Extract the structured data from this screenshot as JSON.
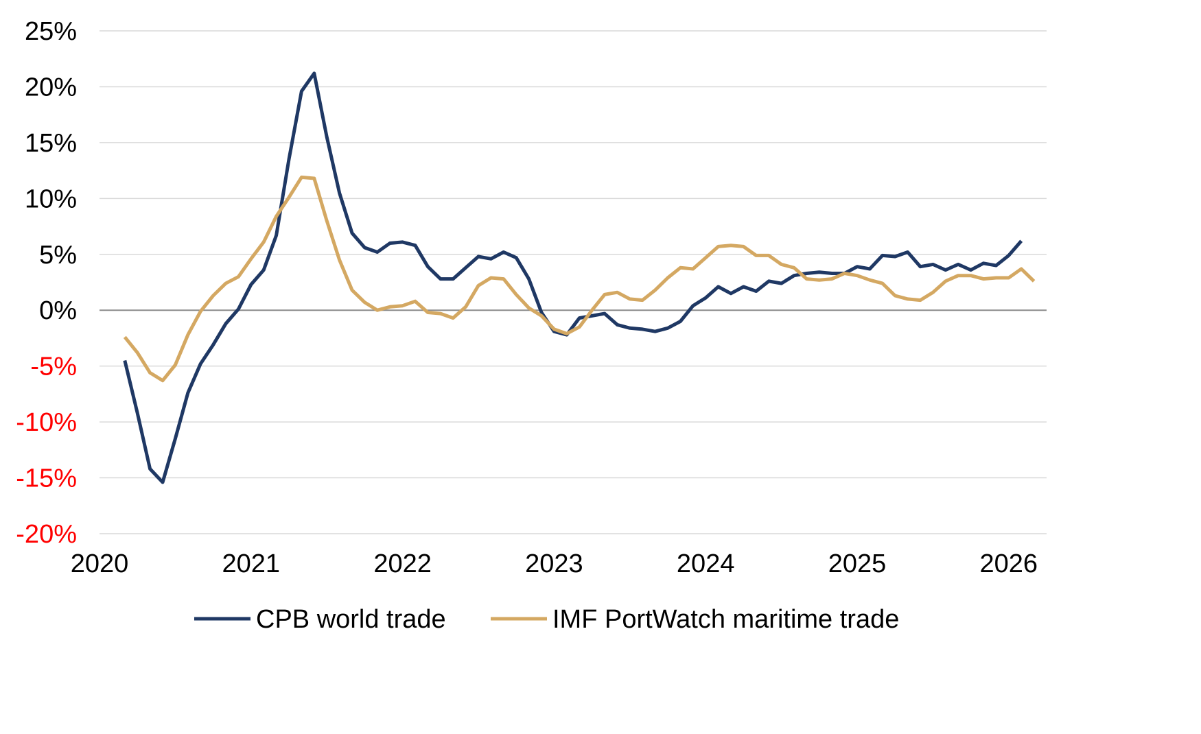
{
  "chart_data": {
    "type": "line",
    "title": "",
    "xlabel": "",
    "ylabel": "",
    "ylim": [
      -20,
      25
    ],
    "xlim": [
      "2020-01",
      "2026-04"
    ],
    "y_ticks": [
      25,
      20,
      15,
      10,
      5,
      0,
      -5,
      -10,
      -15,
      -20
    ],
    "y_tick_labels": [
      "25%",
      "20%",
      "15%",
      "10%",
      "5%",
      "0%",
      "-5%",
      "-10%",
      "-15%",
      "-20%"
    ],
    "negative_tick_color": "#ff0000",
    "positive_tick_color": "#000000",
    "x_ticks": [
      "2020-01",
      "2021-01",
      "2022-01",
      "2023-01",
      "2024-01",
      "2025-01",
      "2026-01"
    ],
    "x_tick_labels": [
      "2020",
      "2021",
      "2022",
      "2023",
      "2024",
      "2025",
      "2026"
    ],
    "grid": "horizontal",
    "legend_position": "bottom",
    "series": [
      {
        "name": "CPB world trade",
        "color": "#1f3864",
        "x": [
          "2020-03",
          "2020-04",
          "2020-05",
          "2020-06",
          "2020-07",
          "2020-08",
          "2020-09",
          "2020-10",
          "2020-11",
          "2020-12",
          "2021-01",
          "2021-02",
          "2021-03",
          "2021-04",
          "2021-05",
          "2021-06",
          "2021-07",
          "2021-08",
          "2021-09",
          "2021-10",
          "2021-11",
          "2021-12",
          "2022-01",
          "2022-02",
          "2022-03",
          "2022-04",
          "2022-05",
          "2022-06",
          "2022-07",
          "2022-08",
          "2022-09",
          "2022-10",
          "2022-11",
          "2022-12",
          "2023-01",
          "2023-02",
          "2023-03",
          "2023-04",
          "2023-05",
          "2023-06",
          "2023-07",
          "2023-08",
          "2023-09",
          "2023-10",
          "2023-11",
          "2023-12",
          "2024-01",
          "2024-02",
          "2024-03",
          "2024-04",
          "2024-05",
          "2024-06",
          "2024-07",
          "2024-08",
          "2024-09",
          "2024-10",
          "2024-11",
          "2024-12",
          "2025-01",
          "2025-02",
          "2025-03",
          "2025-04",
          "2025-05",
          "2025-06",
          "2025-07",
          "2025-08",
          "2025-09",
          "2025-10",
          "2025-11",
          "2025-12",
          "2026-01",
          "2026-02"
        ],
        "values": [
          -4.5,
          -9.2,
          -14.2,
          -15.4,
          -11.5,
          -7.4,
          -4.8,
          -3.1,
          -1.2,
          0.1,
          2.3,
          3.6,
          6.7,
          13.5,
          19.6,
          21.2,
          15.5,
          10.5,
          6.9,
          5.6,
          5.2,
          6.0,
          6.1,
          5.8,
          3.9,
          2.8,
          2.8,
          3.8,
          4.8,
          4.6,
          5.2,
          4.7,
          2.8,
          -0.2,
          -1.9,
          -2.2,
          -0.7,
          -0.5,
          -0.3,
          -1.3,
          -1.6,
          -1.7,
          -1.9,
          -1.6,
          -1.0,
          0.4,
          1.1,
          2.1,
          1.5,
          2.1,
          1.7,
          2.6,
          2.4,
          3.1,
          3.3,
          3.4,
          3.3,
          3.3,
          3.9,
          3.7,
          4.9,
          4.8,
          5.2,
          3.9,
          4.1,
          3.6,
          4.1,
          3.6,
          4.2,
          4.0,
          4.9,
          6.2
        ]
      },
      {
        "name": "IMF PortWatch maritime trade",
        "color": "#d4a862",
        "x": [
          "2020-03",
          "2020-04",
          "2020-05",
          "2020-06",
          "2020-07",
          "2020-08",
          "2020-09",
          "2020-10",
          "2020-11",
          "2020-12",
          "2021-01",
          "2021-02",
          "2021-03",
          "2021-04",
          "2021-05",
          "2021-06",
          "2021-07",
          "2021-08",
          "2021-09",
          "2021-10",
          "2021-11",
          "2021-12",
          "2022-01",
          "2022-02",
          "2022-03",
          "2022-04",
          "2022-05",
          "2022-06",
          "2022-07",
          "2022-08",
          "2022-09",
          "2022-10",
          "2022-11",
          "2022-12",
          "2023-01",
          "2023-02",
          "2023-03",
          "2023-04",
          "2023-05",
          "2023-06",
          "2023-07",
          "2023-08",
          "2023-09",
          "2023-10",
          "2023-11",
          "2023-12",
          "2024-01",
          "2024-02",
          "2024-03",
          "2024-04",
          "2024-05",
          "2024-06",
          "2024-07",
          "2024-08",
          "2024-09",
          "2024-10",
          "2024-11",
          "2024-12",
          "2025-01",
          "2025-02",
          "2025-03",
          "2025-04",
          "2025-05",
          "2025-06",
          "2025-07",
          "2025-08",
          "2025-09",
          "2025-10",
          "2025-11",
          "2025-12",
          "2026-01",
          "2026-02",
          "2026-03"
        ],
        "values": [
          -2.4,
          -3.8,
          -5.6,
          -6.3,
          -4.9,
          -2.2,
          -0.1,
          1.3,
          2.4,
          3.0,
          4.6,
          6.1,
          8.4,
          10.1,
          11.9,
          11.8,
          8.0,
          4.5,
          1.8,
          0.7,
          0.0,
          0.3,
          0.4,
          0.8,
          -0.2,
          -0.3,
          -0.7,
          0.3,
          2.2,
          2.9,
          2.8,
          1.4,
          0.2,
          -0.5,
          -1.7,
          -2.1,
          -1.5,
          0.0,
          1.4,
          1.6,
          1.0,
          0.9,
          1.8,
          2.9,
          3.8,
          3.7,
          4.7,
          5.7,
          5.8,
          5.7,
          4.9,
          4.9,
          4.1,
          3.8,
          2.8,
          2.7,
          2.8,
          3.3,
          3.1,
          2.7,
          2.4,
          1.3,
          1.0,
          0.9,
          1.6,
          2.6,
          3.1,
          3.1,
          2.8,
          2.9,
          2.9,
          3.7,
          2.6
        ]
      }
    ]
  }
}
